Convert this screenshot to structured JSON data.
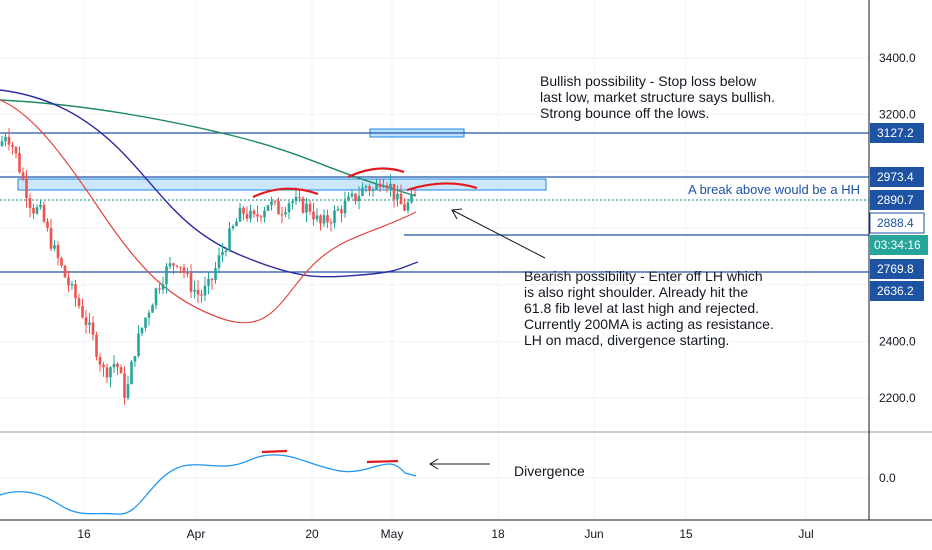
{
  "chart_data": {
    "type": "candlestick",
    "price_axis": {
      "ticks": [
        {
          "label": "3400.0",
          "value": 3400
        },
        {
          "label": "3200.0",
          "value": 3200
        },
        {
          "label": "2400.0",
          "value": 2400
        },
        {
          "label": "2200.0",
          "value": 2200
        }
      ],
      "ylim": [
        2120,
        3540
      ]
    },
    "macd_axis": {
      "ticks": [
        {
          "label": "0.0",
          "value": 0
        }
      ]
    },
    "time_axis": {
      "ticks": [
        "16",
        "Apr",
        "20",
        "May",
        "18",
        "Jun",
        "15",
        "Jul"
      ]
    },
    "horizontal_levels": [
      {
        "label": "3127.2",
        "value": 3127.2
      },
      {
        "label": "2973.4",
        "value": 2973.4
      },
      {
        "label": "2890.7",
        "value": 2890.7
      },
      {
        "label": "2888.4",
        "value": 2888.4
      },
      {
        "label": "2769.8",
        "value": 2769.8
      },
      {
        "label": "2636.2",
        "value": 2636.2
      }
    ],
    "countdown_label": "03:34:16",
    "annotations": {
      "bullish": "Bullish possibility - Stop loss below\nlast low, market structure says bullish.\nStrong bounce off the lows.",
      "break_above": "A break above would be a HH",
      "bearish": "Bearish possibility - Enter off LH which\nis also right shoulder. Already hit the\n61.8 fib level at last high and rejected.\nCurrently 200MA is acting as resistance.\nLH on macd, divergence starting.",
      "divergence": "Divergence"
    },
    "colors": {
      "up": "#26a69a",
      "down": "#ef5350",
      "level_line": "#1e53a3",
      "label_blue": "#1e53a3",
      "label_teal": "#26a69a",
      "ma_red": "#e0453d",
      "ma_green": "#1f8a5f",
      "ma_navy": "#2f2aa0",
      "macd": "#2196f3",
      "annotation_red": "#e31a1c",
      "zone_fill": "#bbdefb"
    }
  }
}
